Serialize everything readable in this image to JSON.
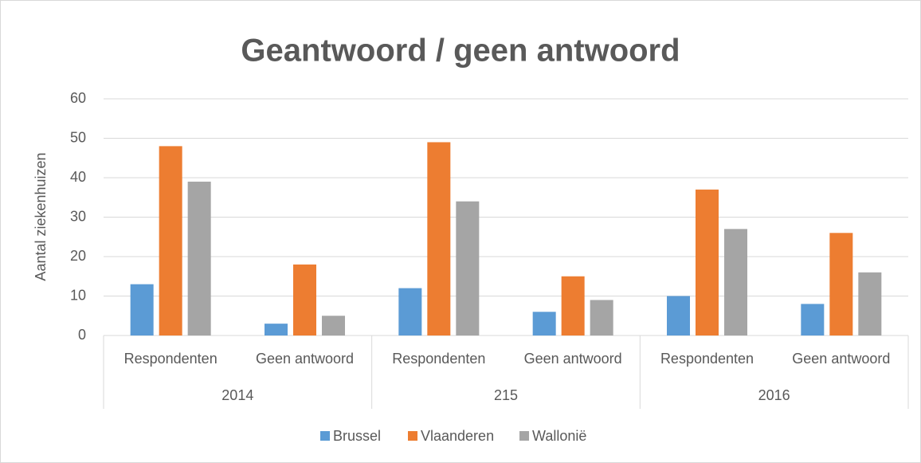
{
  "chart_data": {
    "type": "bar",
    "title": "Geantwoord / geen antwoord",
    "y_label": "Aantal ziekenhuizen",
    "groups": [
      {
        "label": "2014",
        "categories": [
          "Respondenten",
          "Geen antwoord"
        ]
      },
      {
        "label": "215",
        "categories": [
          "Respondenten",
          "Geen antwoord"
        ]
      },
      {
        "label": "2016",
        "categories": [
          "Respondenten",
          "Geen antwoord"
        ]
      }
    ],
    "series": [
      {
        "name": "Brussel",
        "color": "#5b9bd5",
        "values": [
          13,
          3,
          12,
          6,
          10,
          8
        ]
      },
      {
        "name": "Vlaanderen",
        "color": "#ed7d31",
        "values": [
          48,
          18,
          49,
          15,
          37,
          26
        ]
      },
      {
        "name": "Wallonië",
        "color": "#a5a5a5",
        "values": [
          39,
          5,
          34,
          9,
          27,
          16
        ]
      }
    ],
    "ylim": [
      0,
      60
    ],
    "yticks": [
      0,
      10,
      20,
      30,
      40,
      50,
      60
    ],
    "grid": true,
    "legend": "bottom"
  }
}
